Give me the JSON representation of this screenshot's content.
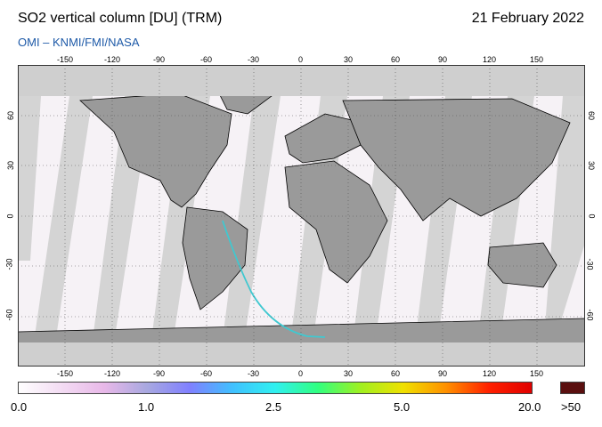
{
  "header": {
    "title": "SO2 vertical column [DU] (TRM)",
    "date": "21 February 2022",
    "credit": "OMI  –  KNMI/FMI/NASA"
  },
  "map": {
    "longitude_ticks": [
      "-150",
      "-120",
      "-90",
      "-60",
      "-30",
      "0",
      "30",
      "60",
      "90",
      "120",
      "150"
    ],
    "latitude_ticks": [
      "60",
      "30",
      "0",
      "-30",
      "-60"
    ],
    "colors": {
      "ocean_swath": "#d4d4d4",
      "land_swath": "#9a9a9a",
      "polar_fill": "#cfcfcf",
      "coastline": "#000000"
    }
  },
  "colorbar": {
    "labels": [
      "0.0",
      "1.0",
      "2.5",
      "5.0",
      "20.0"
    ],
    "over_label": ">50",
    "over_color": "#5a0f0f",
    "gradient_stops": [
      "#ffffff",
      "#f3dcf3",
      "#e8b8e8",
      "#a8a8e0",
      "#8080ff",
      "#40c0ff",
      "#30f0f0",
      "#30ff80",
      "#a0f020",
      "#f0e000",
      "#ff9000",
      "#ff2000",
      "#e00000"
    ]
  }
}
